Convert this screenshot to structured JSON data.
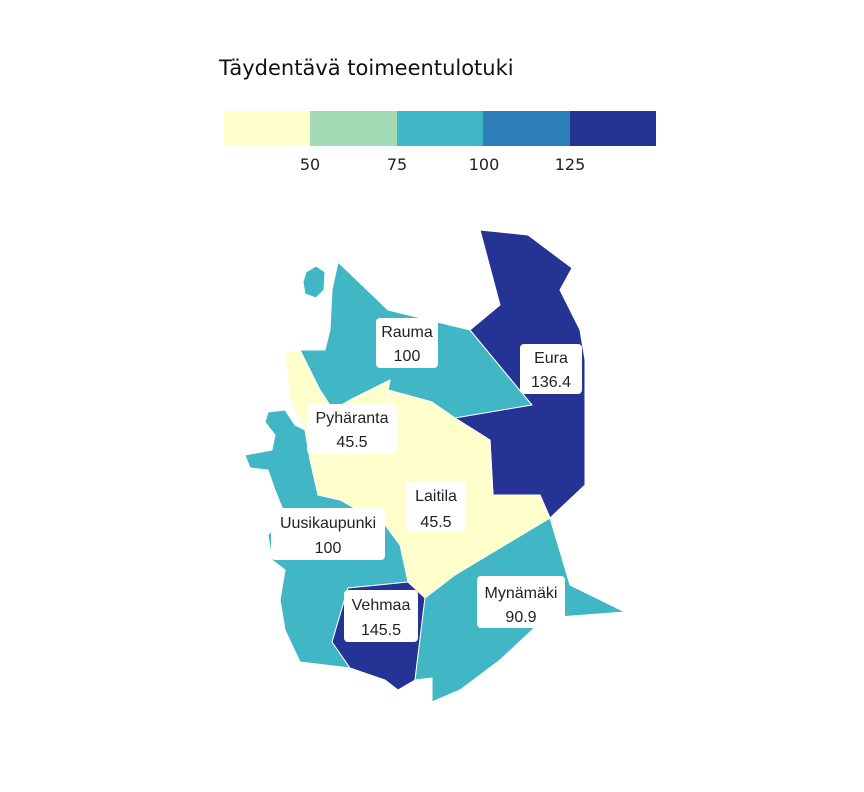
{
  "legend": {
    "title": "Täydentävä toimeentulotuki",
    "colors": [
      "#ffffcc",
      "#a1dab4",
      "#41b6c4",
      "#2c7fb8",
      "#253494"
    ],
    "ticks": [
      "50",
      "75",
      "100",
      "125"
    ]
  },
  "regions": [
    {
      "name": "Rauma",
      "value": "100",
      "color": "#41b6c4"
    },
    {
      "name": "Eura",
      "value": "136.4",
      "color": "#253494"
    },
    {
      "name": "Pyhäranta",
      "value": "45.5",
      "color": "#ffffcc"
    },
    {
      "name": "Laitila",
      "value": "45.5",
      "color": "#ffffcc"
    },
    {
      "name": "Uusikaupunki",
      "value": "100",
      "color": "#41b6c4"
    },
    {
      "name": "Vehmaa",
      "value": "145.5",
      "color": "#253494"
    },
    {
      "name": "Mynämäki",
      "value": "90.9",
      "color": "#41b6c4"
    }
  ]
}
